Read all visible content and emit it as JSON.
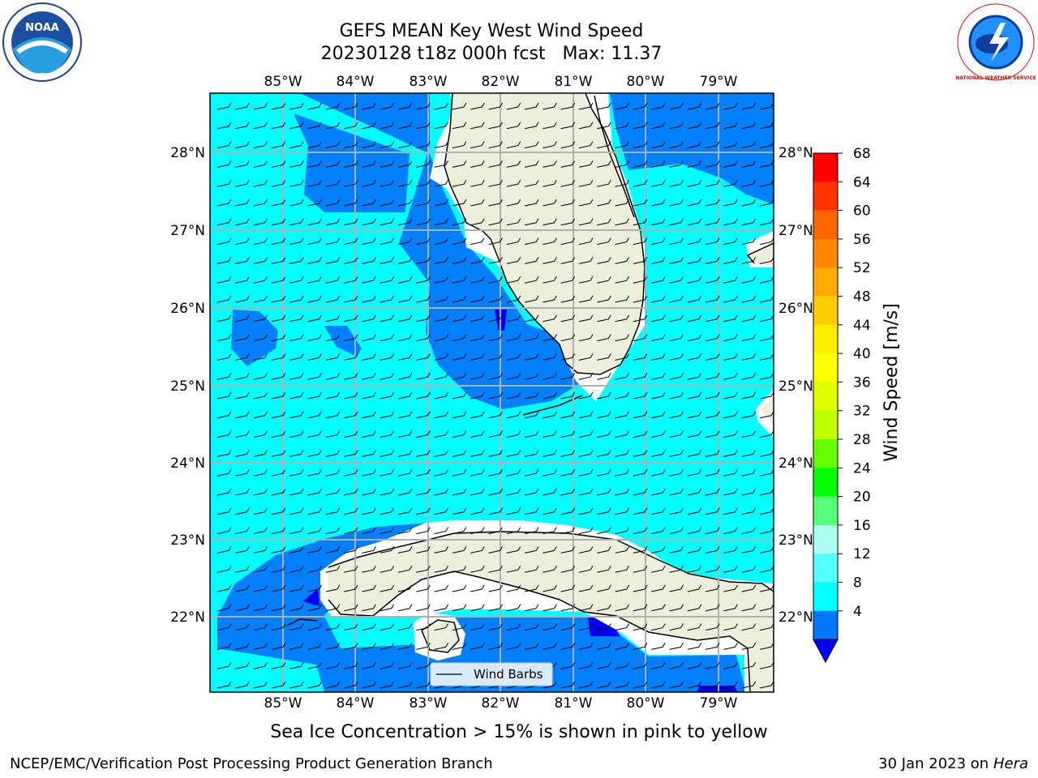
{
  "title": {
    "line1": "GEFS MEAN Key West Wind Speed",
    "line2": "20230128 t18z 000h fcst   Max: 11.37"
  },
  "map": {
    "lon_ticks": [
      "85°W",
      "84°W",
      "83°W",
      "82°W",
      "81°W",
      "80°W",
      "79°W"
    ],
    "lat_ticks": [
      "28°N",
      "27°N",
      "26°N",
      "25°N",
      "24°N",
      "23°N",
      "22°N"
    ],
    "legend_label": "Wind Barbs",
    "colors": {
      "land": "#eeeedd",
      "coast": "#000000",
      "speed_4_8": "#0080ff",
      "speed_8_12": "#00ffff",
      "speed_below_4": "#0000ee",
      "gridline": "#b0b0b0"
    }
  },
  "colorbar": {
    "label": "Wind Speed [m/s]",
    "ticks": [
      "68",
      "64",
      "60",
      "56",
      "52",
      "48",
      "44",
      "40",
      "36",
      "32",
      "28",
      "24",
      "20",
      "16",
      "12",
      "8",
      "4"
    ],
    "colors_top_to_bottom": [
      "#ff0000",
      "#ff3300",
      "#ff6600",
      "#ff8800",
      "#ffaa00",
      "#ffcc00",
      "#ffee00",
      "#ffff00",
      "#ddff00",
      "#bbff00",
      "#66ff00",
      "#00ff00",
      "#55ff77",
      "#aaffee",
      "#55ffff",
      "#00ffff",
      "#0077ff"
    ],
    "extend_color": "#0000ff"
  },
  "caption": "Sea Ice Concentration > 15% is shown in pink to yellow",
  "footer": {
    "left": "NCEP/EMC/Verification Post Processing Product Generation Branch",
    "right_prefix": "30 Jan 2023 on ",
    "right_host": "Hera"
  },
  "logos": {
    "noaa_text": "NOAA",
    "nws_text": "NATIONAL WEATHER SERVICE"
  }
}
